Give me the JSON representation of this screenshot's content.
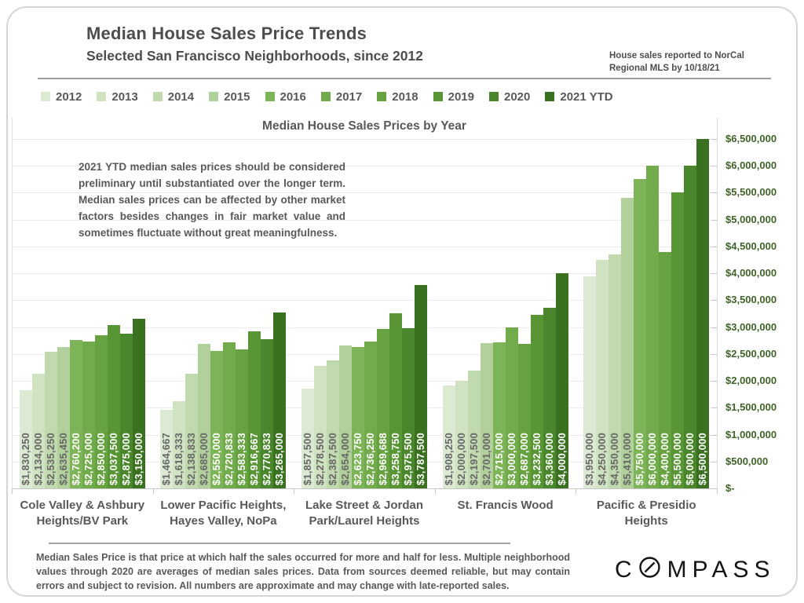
{
  "header": {
    "title": "Median House Sales Price Trends",
    "subtitle": "Selected San Francisco Neighborhoods, since 2012",
    "note_line1": "House sales reported to NorCal",
    "note_line2": "Regional MLS by 10/18/21"
  },
  "chart_data": {
    "type": "bar",
    "title": "Median House Sales Prices by Year",
    "annotation": "2021 YTD median sales prices should be considered preliminary until substantiated over the longer term. Median sales prices can be affected by other market factors besides changes in fair market value and sometimes fluctuate without great meaningfulness.",
    "legend_position": "top",
    "grid": true,
    "ylim": [
      0,
      6500000
    ],
    "ytick_step": 500000,
    "ytick_labels": [
      "$-",
      "$500,000",
      "$1,000,000",
      "$1,500,000",
      "$2,000,000",
      "$2,500,000",
      "$3,000,000",
      "$3,500,000",
      "$4,000,000",
      "$4,500,000",
      "$5,000,000",
      "$5,500,000",
      "$6,000,000",
      "$6,500,000"
    ],
    "categories": [
      "Cole Valley & Ashbury Heights/BV Park",
      "Lower Pacific Heights, Hayes Valley, NoPa",
      "Lake Street & Jordan Park/Laurel Heights",
      "St. Francis Wood",
      "Pacific & Presidio Heights"
    ],
    "series": [
      {
        "name": "2012",
        "color": "#dcead4",
        "value_label_color": "#666666",
        "values": [
          1830250,
          1464667,
          1857500,
          1908250,
          3950000
        ]
      },
      {
        "name": "2013",
        "color": "#cfe2c2",
        "value_label_color": "#666666",
        "values": [
          2134000,
          1618333,
          2278500,
          2000000,
          4250000
        ]
      },
      {
        "name": "2014",
        "color": "#c0d9af",
        "value_label_color": "#666666",
        "values": [
          2535250,
          2138833,
          2387500,
          2197500,
          4350000
        ]
      },
      {
        "name": "2015",
        "color": "#b1d09c",
        "value_label_color": "#666666",
        "values": [
          2635450,
          2685000,
          2654000,
          2701000,
          5410000
        ]
      },
      {
        "name": "2016",
        "color": "#7db457",
        "value_label_color": "#ffffff",
        "values": [
          2760200,
          2550000,
          2623750,
          2715000,
          5750000
        ]
      },
      {
        "name": "2017",
        "color": "#72ab4b",
        "value_label_color": "#ffffff",
        "values": [
          2725000,
          2720833,
          2736250,
          3000000,
          6000000
        ]
      },
      {
        "name": "2018",
        "color": "#66a23f",
        "value_label_color": "#ffffff",
        "values": [
          2850000,
          2583333,
          2969688,
          2687000,
          4400000
        ]
      },
      {
        "name": "2019",
        "color": "#589535",
        "value_label_color": "#ffffff",
        "values": [
          3037500,
          2916667,
          3258750,
          3232500,
          5500000
        ]
      },
      {
        "name": "2020",
        "color": "#4a862b",
        "value_label_color": "#ffffff",
        "values": [
          2875000,
          2770833,
          2975500,
          3360000,
          6000000
        ]
      },
      {
        "name": "2021 YTD",
        "color": "#397120",
        "value_label_color": "#ffffff",
        "values": [
          3150000,
          3265000,
          3787500,
          4000000,
          6500000
        ]
      }
    ],
    "value_label_format": "$#,###"
  },
  "footer": {
    "disclaimer": "Median Sales Price is that price at which half the sales occurred for more and half for less. Multiple neighborhood values through 2020 are averages of median sales prices. Data from sources deemed reliable, but may contain errors and subject to revision.  All numbers are approximate and may change with late-reported sales.",
    "brand": "COMPASS"
  }
}
